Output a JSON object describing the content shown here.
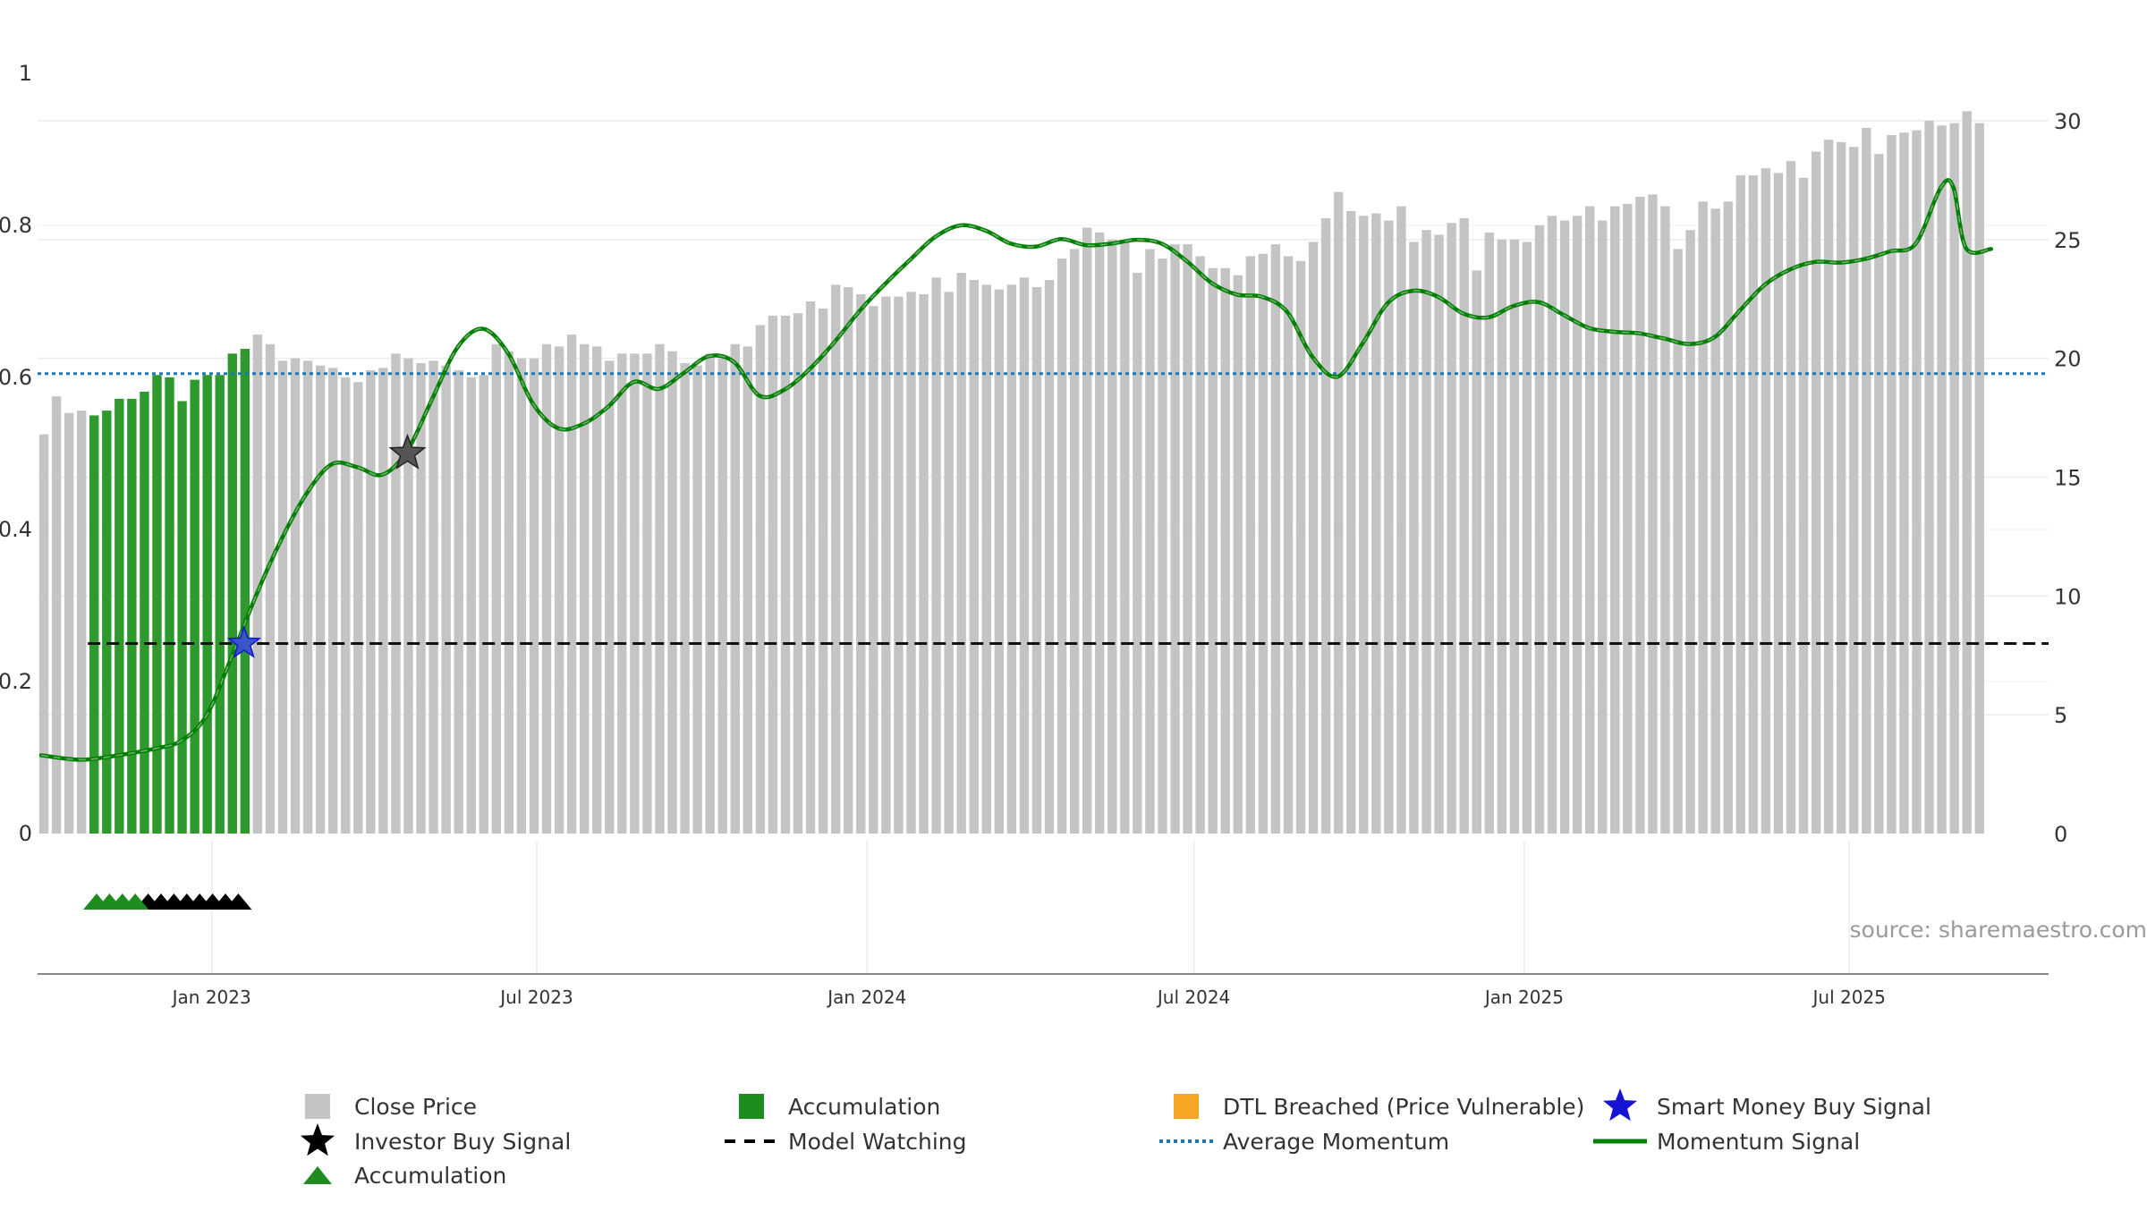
{
  "chart_data": {
    "type": "bar",
    "title": "",
    "xlabel": "",
    "ylabel_left": "",
    "ylabel_right": "",
    "left_axis": {
      "range": [
        0,
        1
      ],
      "ticks": [
        0,
        0.2,
        0.4,
        0.6,
        0.8,
        1
      ],
      "tick_labels": [
        "0",
        "0.2",
        "0.4",
        "0.6",
        "0.8",
        "1"
      ]
    },
    "right_axis": {
      "range": [
        0,
        32
      ],
      "ticks": [
        0,
        5,
        10,
        15,
        20,
        25,
        30
      ],
      "tick_labels": [
        "0",
        "5",
        "10",
        "15",
        "20",
        "25",
        "30"
      ]
    },
    "x_axis": {
      "start": "2022-09-26",
      "end": "2025-10-20",
      "ticks": [
        "2023-01-01",
        "2023-07-01",
        "2024-01-01",
        "2024-07-01",
        "2025-01-01",
        "2025-07-01"
      ],
      "tick_labels": [
        "Jan 2023",
        "Jul 2023",
        "Jan 2024",
        "Jul 2024",
        "Jan 2025",
        "Jul 2025"
      ]
    },
    "grid": true,
    "weekly_bars": {
      "start": "2022-09-26",
      "interval_days": 7,
      "accumulation_range": [
        4,
        16
      ],
      "close_price": [
        16.8,
        18.4,
        17.7,
        17.8,
        17.6,
        17.8,
        18.3,
        18.3,
        18.6,
        19.3,
        19.2,
        18.2,
        19.1,
        19.3,
        19.3,
        20.2,
        20.4,
        21.0,
        20.6,
        19.9,
        20.0,
        19.9,
        19.7,
        19.6,
        19.2,
        19.0,
        19.5,
        19.6,
        20.2,
        20.0,
        19.8,
        19.9,
        19.7,
        19.5,
        19.2,
        19.3,
        20.6,
        20.3,
        20.0,
        20.0,
        20.6,
        20.5,
        21.0,
        20.6,
        20.5,
        19.9,
        20.2,
        20.2,
        20.2,
        20.6,
        20.3,
        19.8,
        19.7,
        20.2,
        20.0,
        20.6,
        20.5,
        21.4,
        21.8,
        21.8,
        21.9,
        22.4,
        22.1,
        23.1,
        23.0,
        22.7,
        22.2,
        22.6,
        22.6,
        22.8,
        22.7,
        23.4,
        22.8,
        23.6,
        23.3,
        23.1,
        22.9,
        23.1,
        23.4,
        23.0,
        23.3,
        24.2,
        24.6,
        25.5,
        25.3,
        25.0,
        24.9,
        23.6,
        24.6,
        24.2,
        24.8,
        24.8,
        24.3,
        23.8,
        23.8,
        23.5,
        24.3,
        24.4,
        24.8,
        24.3,
        24.1,
        24.9,
        25.9,
        27.0,
        26.2,
        26.0,
        26.1,
        25.8,
        26.4,
        24.9,
        25.4,
        25.2,
        25.7,
        25.9,
        23.7,
        25.3,
        25.0,
        25.0,
        24.9,
        25.6,
        26.0,
        25.8,
        26.0,
        26.4,
        25.8,
        26.4,
        26.5,
        26.8,
        26.9,
        26.4,
        24.6,
        25.4,
        26.6,
        26.3,
        26.6,
        27.7,
        27.7,
        28.0,
        27.8,
        28.3,
        27.6,
        28.7,
        29.2,
        29.1,
        28.9,
        29.7,
        28.6,
        29.4,
        29.5,
        29.6,
        30.0,
        29.8,
        29.9,
        30.4,
        29.9
      ]
    },
    "series": [
      {
        "name": "Close Price",
        "kind": "bar",
        "color": "#c4c4c4",
        "axis": "right"
      },
      {
        "name": "Accumulation",
        "kind": "bar",
        "color": "#2e9a2e",
        "axis": "right"
      },
      {
        "name": "DTL Breached (Price Vulnerable)",
        "kind": "bar",
        "color": "#f5a623",
        "axis": "right",
        "values": []
      },
      {
        "name": "Momentum Signal",
        "kind": "line",
        "color": "#008000",
        "axis": "left",
        "points": [
          [
            "2022-09-28",
            0.103
          ],
          [
            "2022-10-20",
            0.097
          ],
          [
            "2022-11-10",
            0.103
          ],
          [
            "2022-12-01",
            0.112
          ],
          [
            "2022-12-15",
            0.122
          ],
          [
            "2022-12-29",
            0.155
          ],
          [
            "2023-01-12",
            0.232
          ],
          [
            "2023-01-26",
            0.315
          ],
          [
            "2023-02-09",
            0.388
          ],
          [
            "2023-02-23",
            0.448
          ],
          [
            "2023-03-09",
            0.486
          ],
          [
            "2023-03-23",
            0.482
          ],
          [
            "2023-04-06",
            0.472
          ],
          [
            "2023-04-20",
            0.504
          ],
          [
            "2023-05-04",
            0.573
          ],
          [
            "2023-05-18",
            0.64
          ],
          [
            "2023-06-01",
            0.664
          ],
          [
            "2023-06-15",
            0.632
          ],
          [
            "2023-06-29",
            0.565
          ],
          [
            "2023-07-13",
            0.533
          ],
          [
            "2023-07-27",
            0.539
          ],
          [
            "2023-08-10",
            0.562
          ],
          [
            "2023-08-24",
            0.594
          ],
          [
            "2023-09-07",
            0.585
          ],
          [
            "2023-09-21",
            0.606
          ],
          [
            "2023-10-05",
            0.628
          ],
          [
            "2023-10-19",
            0.62
          ],
          [
            "2023-11-02",
            0.576
          ],
          [
            "2023-11-16",
            0.584
          ],
          [
            "2023-11-30",
            0.611
          ],
          [
            "2023-12-14",
            0.647
          ],
          [
            "2023-12-28",
            0.688
          ],
          [
            "2024-01-11",
            0.723
          ],
          [
            "2024-01-25",
            0.755
          ],
          [
            "2024-02-08",
            0.785
          ],
          [
            "2024-02-22",
            0.8
          ],
          [
            "2024-03-07",
            0.793
          ],
          [
            "2024-03-21",
            0.776
          ],
          [
            "2024-04-04",
            0.772
          ],
          [
            "2024-04-18",
            0.782
          ],
          [
            "2024-05-02",
            0.774
          ],
          [
            "2024-05-16",
            0.776
          ],
          [
            "2024-05-30",
            0.781
          ],
          [
            "2024-06-13",
            0.776
          ],
          [
            "2024-06-27",
            0.753
          ],
          [
            "2024-07-11",
            0.724
          ],
          [
            "2024-07-25",
            0.709
          ],
          [
            "2024-08-08",
            0.706
          ],
          [
            "2024-08-22",
            0.686
          ],
          [
            "2024-09-05",
            0.627
          ],
          [
            "2024-09-19",
            0.601
          ],
          [
            "2024-10-03",
            0.645
          ],
          [
            "2024-10-17",
            0.698
          ],
          [
            "2024-10-31",
            0.714
          ],
          [
            "2024-11-14",
            0.706
          ],
          [
            "2024-11-28",
            0.684
          ],
          [
            "2024-12-12",
            0.679
          ],
          [
            "2024-12-26",
            0.694
          ],
          [
            "2025-01-09",
            0.699
          ],
          [
            "2025-01-23",
            0.682
          ],
          [
            "2025-02-06",
            0.665
          ],
          [
            "2025-02-20",
            0.66
          ],
          [
            "2025-03-06",
            0.658
          ],
          [
            "2025-03-20",
            0.651
          ],
          [
            "2025-04-03",
            0.644
          ],
          [
            "2025-04-17",
            0.653
          ],
          [
            "2025-05-01",
            0.688
          ],
          [
            "2025-05-15",
            0.722
          ],
          [
            "2025-05-29",
            0.742
          ],
          [
            "2025-06-12",
            0.752
          ],
          [
            "2025-06-26",
            0.751
          ],
          [
            "2025-07-10",
            0.756
          ],
          [
            "2025-07-24",
            0.766
          ],
          [
            "2025-08-07",
            0.776
          ],
          [
            "2025-08-21",
            0.85
          ],
          [
            "2025-08-28",
            0.85
          ],
          [
            "2025-09-04",
            0.77
          ],
          [
            "2025-09-18",
            0.769
          ]
        ]
      },
      {
        "name": "Average Momentum",
        "kind": "hline",
        "color": "#1f77b4",
        "axis": "left",
        "value": 0.605
      },
      {
        "name": "Model Watching",
        "kind": "hline",
        "color": "#111111",
        "axis": "left",
        "value": 0.25,
        "from": "2022-10-24"
      },
      {
        "name": "Investor Buy Signal",
        "kind": "marker",
        "color": "#222222",
        "axis": "left",
        "points": [
          [
            "2023-04-20",
            0.5
          ]
        ]
      },
      {
        "name": "Smart Money Buy Signal",
        "kind": "marker",
        "color": "#1414d2",
        "axis": "left",
        "points": [
          [
            "2023-01-19",
            0.25
          ]
        ]
      }
    ],
    "accumulation_markers": {
      "green_count": 4,
      "black_count": 8
    },
    "legend": {
      "position": "bottom",
      "entries": [
        {
          "label": "Close Price",
          "symbol": "square",
          "color": "#c4c4c4"
        },
        {
          "label": "Accumulation",
          "symbol": "square",
          "color": "#1e8c1e"
        },
        {
          "label": "DTL Breached (Price Vulnerable)",
          "symbol": "square",
          "color": "#f5a623"
        },
        {
          "label": "Smart Money Buy Signal",
          "symbol": "star",
          "color": "#1414d2"
        },
        {
          "label": "Investor Buy Signal",
          "symbol": "star",
          "color": "#000000"
        },
        {
          "label": "Model Watching",
          "symbol": "dash",
          "color": "#000000"
        },
        {
          "label": "Average Momentum",
          "symbol": "dot",
          "color": "#1f77b4"
        },
        {
          "label": "Momentum Signal",
          "symbol": "line",
          "color": "#008000"
        },
        {
          "label": "Accumulation",
          "symbol": "triangle",
          "color": "#1e8c1e"
        }
      ]
    },
    "source": "source: sharemaestro.com"
  }
}
